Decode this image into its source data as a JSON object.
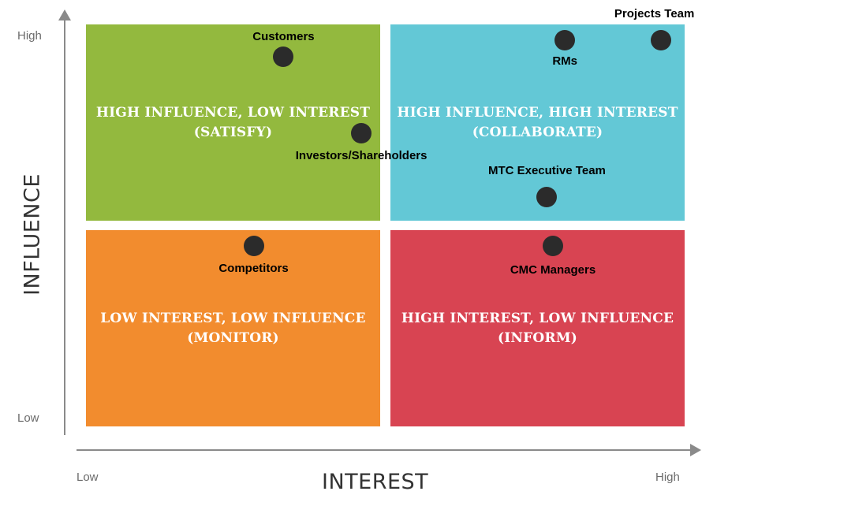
{
  "quadrants": {
    "top_left": {
      "line1": "HIGH INFLUENCE, LOW INTEREST",
      "line2": "(SATISFY)",
      "color": "#93b93e"
    },
    "top_right": {
      "line1": "HIGH INFLUENCE, HIGH INTEREST",
      "line2": "(COLLABORATE)",
      "color": "#63c8d6"
    },
    "bottom_left": {
      "line1": "LOW INTEREST, LOW INFLUENCE",
      "line2": "(MONITOR)",
      "color": "#f28c2e"
    },
    "bottom_right": {
      "line1": "HIGH INTEREST, LOW INFLUENCE",
      "line2": "(INFORM)",
      "color": "#d84452"
    }
  },
  "axes": {
    "y_title": "INFLUENCE",
    "y_high": "High",
    "y_low": "Low",
    "x_title": "INTEREST",
    "x_low": "Low",
    "x_high": "High"
  },
  "stakeholders": [
    {
      "name": "Customers",
      "interest": 0.33,
      "influence": 0.92
    },
    {
      "name": "Investors/Shareholders",
      "interest": 0.46,
      "influence": 0.73
    },
    {
      "name": "RMs",
      "interest": 0.8,
      "influence": 0.96
    },
    {
      "name": "Projects Team",
      "interest": 0.96,
      "influence": 0.96
    },
    {
      "name": "MTC Executive Team",
      "interest": 0.77,
      "influence": 0.57
    },
    {
      "name": "Competitors",
      "interest": 0.28,
      "influence": 0.45
    },
    {
      "name": "CMC Managers",
      "interest": 0.78,
      "influence": 0.45
    }
  ]
}
